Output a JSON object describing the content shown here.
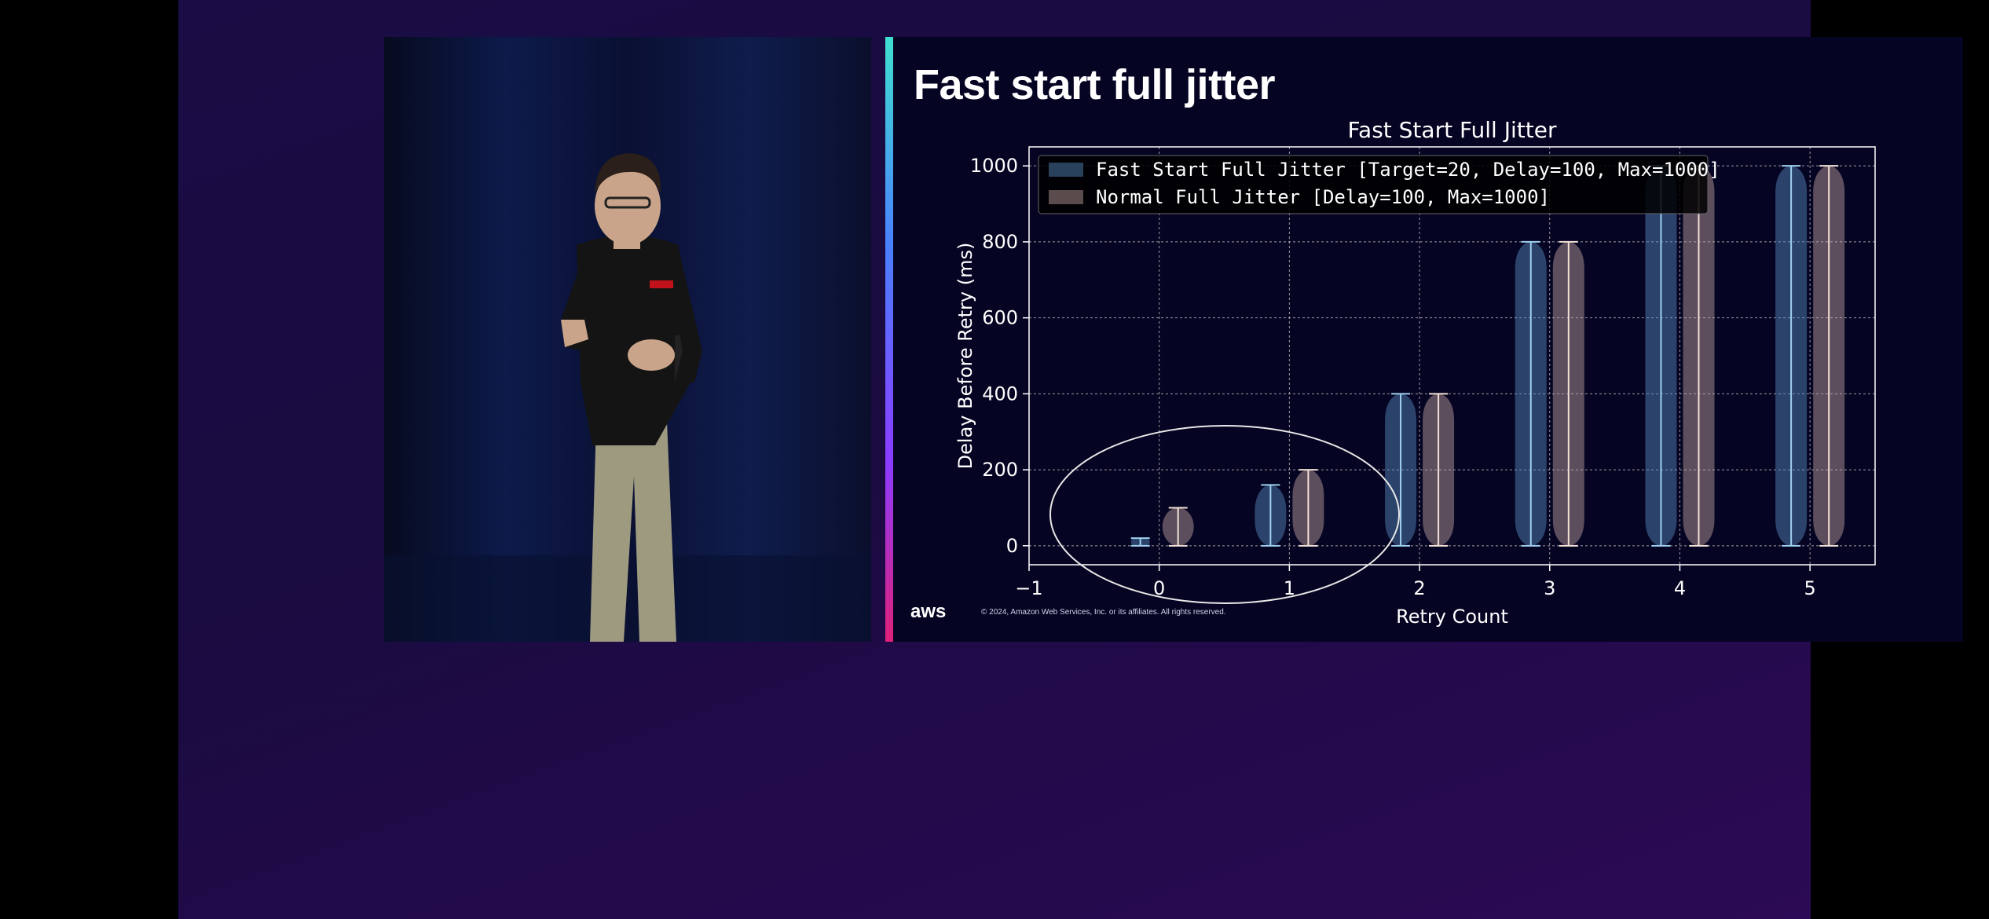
{
  "slide": {
    "title": "Fast start full jitter",
    "copyright": "© 2024, Amazon Web Services, Inc. or its affiliates. All rights reserved.",
    "logo": "aws"
  },
  "chart_data": {
    "type": "violin",
    "title": "Fast Start Full Jitter",
    "xlabel": "Retry Count",
    "ylabel": "Delay Before Retry (ms)",
    "xlim": [
      -1,
      5.5
    ],
    "ylim": [
      -50,
      1050
    ],
    "xticks": [
      "−1",
      "0",
      "1",
      "2",
      "3",
      "4",
      "5"
    ],
    "yticks": [
      "0",
      "200",
      "400",
      "600",
      "800",
      "1000"
    ],
    "grid": true,
    "legend_position": "top-left",
    "categories": [
      0,
      1,
      2,
      3,
      4,
      5
    ],
    "series": [
      {
        "name": "Fast Start Full Jitter [Target=20, Delay=100, Max=1000]",
        "color": "#5b8fc4",
        "max_values": [
          20,
          160,
          400,
          800,
          1000,
          1000
        ],
        "min_values": [
          0,
          0,
          0,
          0,
          0,
          0
        ]
      },
      {
        "name": "Normal Full Jitter [Delay=100, Max=1000]",
        "color": "#c8a9a6",
        "max_values": [
          100,
          200,
          400,
          800,
          1000,
          1000
        ],
        "min_values": [
          0,
          0,
          0,
          0,
          0,
          0
        ]
      }
    ]
  }
}
